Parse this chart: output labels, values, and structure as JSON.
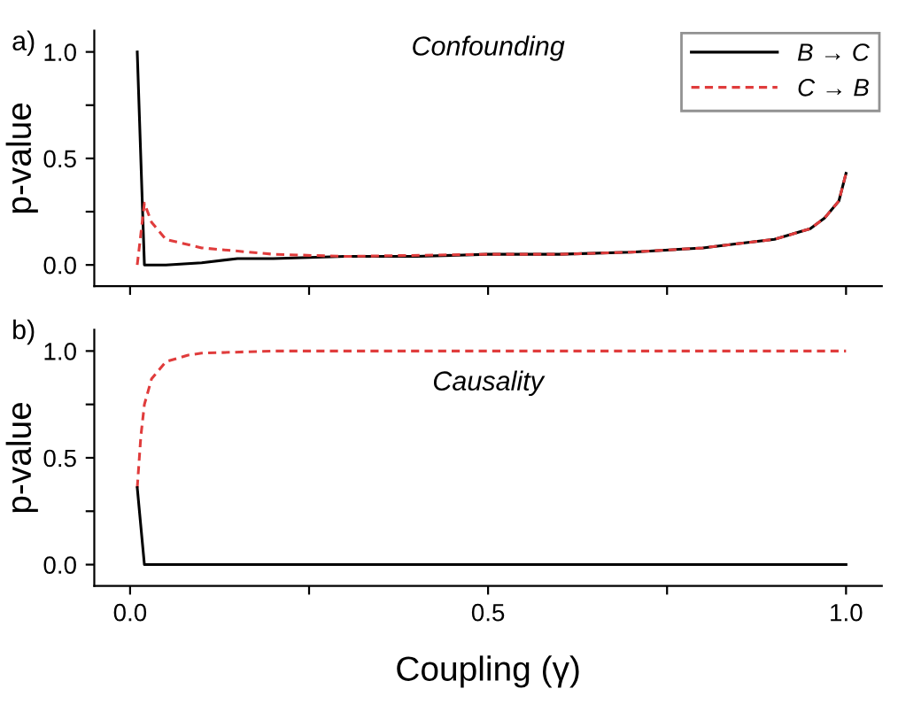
{
  "chart_data": [
    {
      "type": "line",
      "title": "Confounding",
      "ylabel": "p-value",
      "annotations": [
        "a)"
      ],
      "tick_labels": "y",
      "legend": "top right",
      "grid": false,
      "xlim": [
        -0.05,
        1.05
      ],
      "xticks": [
        {
          "value": 0,
          "label": null
        },
        {
          "value": 0.25,
          "label": null
        },
        {
          "value": 0.5,
          "label": null
        },
        {
          "value": 0.75,
          "label": null
        },
        {
          "value": 1,
          "label": null
        }
      ],
      "ylim": [
        -0.1,
        1.1
      ],
      "yticks": [
        {
          "value": 0,
          "label": "0.0"
        },
        {
          "value": 0.25,
          "label": null
        },
        {
          "value": 0.5,
          "label": "0.5"
        },
        {
          "value": 0.75,
          "label": null
        },
        {
          "value": 1,
          "label": "1.0"
        }
      ],
      "series": [
        {
          "name": "B → C",
          "color": "#000000",
          "line_style": "solid",
          "x": [
            0.01,
            0.02,
            0.05,
            0.1,
            0.15,
            0.2,
            0.3,
            0.4,
            0.5,
            0.6,
            0.7,
            0.8,
            0.85,
            0.9,
            0.95,
            0.97,
            0.99,
            1.0
          ],
          "values": [
            1.0,
            0.0,
            0.0,
            0.01,
            0.03,
            0.03,
            0.04,
            0.04,
            0.05,
            0.05,
            0.06,
            0.08,
            0.1,
            0.12,
            0.17,
            0.22,
            0.3,
            0.43
          ]
        },
        {
          "name": "C → B",
          "color": "#e03c3c",
          "line_style": "dashed",
          "x": [
            0.01,
            0.02,
            0.03,
            0.05,
            0.1,
            0.2,
            0.3,
            0.5,
            0.6,
            0.7,
            0.8,
            0.85,
            0.9,
            0.95,
            0.97,
            0.99,
            1.0
          ],
          "values": [
            0.0,
            0.29,
            0.2,
            0.12,
            0.08,
            0.05,
            0.04,
            0.05,
            0.05,
            0.06,
            0.08,
            0.1,
            0.12,
            0.17,
            0.22,
            0.3,
            0.43
          ]
        }
      ]
    },
    {
      "type": "line",
      "title": "Causality",
      "xlabel": "Coupling (γ)",
      "ylabel": "p-value",
      "annotations": [
        "b)"
      ],
      "grid": false,
      "legend": false,
      "xlim": [
        -0.05,
        1.05
      ],
      "xticks": [
        {
          "value": 0,
          "label": "0.0"
        },
        {
          "value": 0.25,
          "label": null
        },
        {
          "value": 0.5,
          "label": "0.5"
        },
        {
          "value": 0.75,
          "label": null
        },
        {
          "value": 1,
          "label": "1.0"
        }
      ],
      "ylim": [
        -0.1,
        1.1
      ],
      "yticks": [
        {
          "value": 0,
          "label": "0.0"
        },
        {
          "value": 0.25,
          "label": null
        },
        {
          "value": 0.5,
          "label": "0.5"
        },
        {
          "value": 0.75,
          "label": null
        },
        {
          "value": 1,
          "label": "1.0"
        }
      ],
      "series": [
        {
          "color": "#e03c3c",
          "line_style": "dashed",
          "x": [
            0.01,
            0.015,
            0.02,
            0.03,
            0.05,
            0.08,
            0.1,
            0.2,
            1.0
          ],
          "values": [
            0.36,
            0.6,
            0.75,
            0.87,
            0.95,
            0.98,
            0.99,
            1.0,
            1.0
          ]
        },
        {
          "color": "#000000",
          "line_style": "solid",
          "x": [
            0.01,
            0.02,
            1.0
          ],
          "values": [
            0.36,
            0.0,
            0.0
          ]
        }
      ]
    }
  ]
}
